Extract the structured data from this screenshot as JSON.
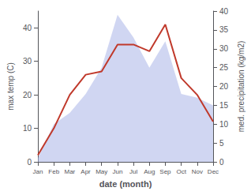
{
  "chart_data": {
    "type": "line",
    "categories": [
      "Jan",
      "Feb",
      "Mar",
      "Apr",
      "May",
      "Jun",
      "Jul",
      "Aug",
      "Sep",
      "Oct",
      "Nov",
      "Dec"
    ],
    "xlabel": "date (month)",
    "ylabel": "max temp (C)",
    "y2label": "med. precipitation (kg/m2)",
    "series": [
      {
        "type": "area",
        "color": "#aab4e8",
        "axis": "y2",
        "values": [
          1,
          10,
          13,
          18,
          25,
          39,
          33,
          25,
          32,
          18,
          17,
          15
        ]
      },
      {
        "type": "line",
        "color": "#c0392b",
        "values": [
          2,
          10,
          20,
          26,
          27,
          35,
          35,
          33,
          41,
          25,
          20,
          12
        ]
      }
    ],
    "ylim": [
      0,
      45
    ],
    "yticks": [
      0,
      10,
      20,
      30,
      40
    ],
    "y2lim": [
      0,
      40
    ],
    "y2ticks": [
      0,
      5,
      10,
      15,
      20,
      25,
      30,
      35,
      40
    ],
    "grid": false
  }
}
